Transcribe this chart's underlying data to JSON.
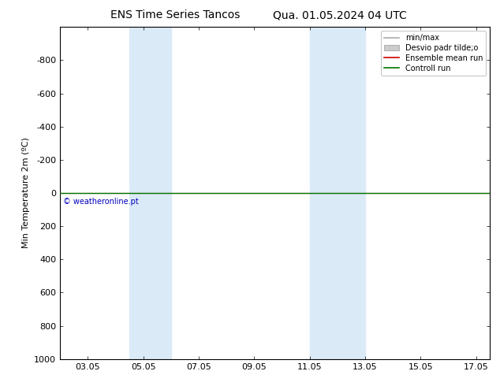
{
  "title": "ENS Time Series Tancos",
  "title2": "Qua. 01.05.2024 04 UTC",
  "ylabel": "Min Temperature 2m (ºC)",
  "ylim_bottom": -1000,
  "ylim_top": 1000,
  "yticks": [
    -800,
    -600,
    -400,
    -200,
    0,
    200,
    400,
    600,
    800,
    1000
  ],
  "xlim_min": 2.0,
  "xlim_max": 17.5,
  "xtick_labels": [
    "03.05",
    "05.05",
    "07.05",
    "09.05",
    "11.05",
    "13.05",
    "15.05",
    "17.05"
  ],
  "xtick_positions": [
    3,
    5,
    7,
    9,
    11,
    13,
    15,
    17
  ],
  "shaded_bands": [
    {
      "xmin": 4.5,
      "xmax": 6.0
    },
    {
      "xmin": 11.0,
      "xmax": 13.0
    }
  ],
  "shade_color": "#daeaf7",
  "green_line_y": 0,
  "green_line_color": "#007700",
  "red_line_color": "#cc0000",
  "copyright_text": "© weatheronline.pt",
  "copyright_color": "#0000bb",
  "legend_items": [
    {
      "label": "min/max",
      "color": "#aaaaaa",
      "type": "line",
      "lw": 1.2
    },
    {
      "label": "Desvio padr tilde;o",
      "color": "#cccccc",
      "type": "patch"
    },
    {
      "label": "Ensemble mean run",
      "color": "#cc0000",
      "type": "line",
      "lw": 1.2
    },
    {
      "label": "Controll run",
      "color": "#007700",
      "type": "line",
      "lw": 1.2
    }
  ],
  "bg_color": "#ffffff",
  "plot_bg_color": "#ffffff",
  "font_size": 8,
  "title_font_size": 10
}
